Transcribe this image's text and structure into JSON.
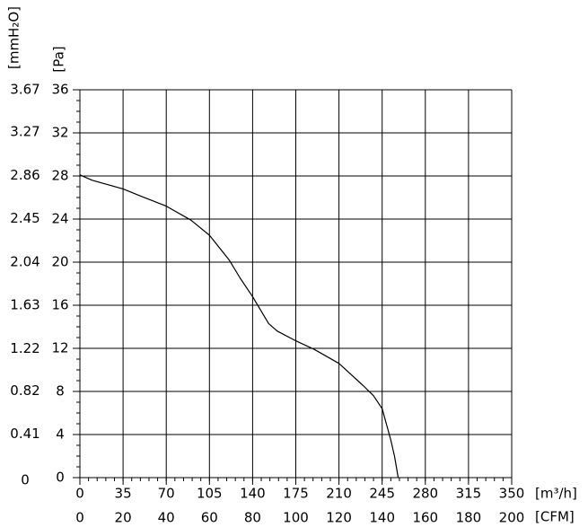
{
  "chart_data": {
    "type": "line",
    "x": [
      0,
      10,
      35,
      50,
      70,
      90,
      105,
      121,
      130,
      140,
      153,
      160,
      175,
      190,
      210,
      230,
      238,
      245,
      252,
      255,
      258
    ],
    "series": [
      {
        "color": "#000000",
        "values": [
          28.1,
          27.6,
          26.8,
          26.1,
          25.2,
          23.9,
          22.5,
          20.2,
          18.5,
          16.8,
          14.3,
          13.6,
          12.7,
          11.9,
          10.6,
          8.5,
          7.6,
          6.4,
          3.5,
          2,
          0
        ]
      }
    ],
    "xlim": [
      0,
      350
    ],
    "xticks": [
      0,
      35,
      70,
      105,
      140,
      175,
      210,
      245,
      280,
      315,
      350
    ],
    "x2lim": [
      0,
      200
    ],
    "x2ticks": [
      0,
      20,
      40,
      60,
      80,
      100,
      120,
      140,
      160,
      180,
      200
    ],
    "ylim": [
      0,
      36
    ],
    "yticks": [
      0,
      4,
      8,
      12,
      16,
      20,
      24,
      28,
      32,
      36
    ],
    "y2lim": [
      0,
      3.67
    ],
    "y2ticks": [
      0,
      0.41,
      0.82,
      1.22,
      1.63,
      2.04,
      2.45,
      2.86,
      3.27,
      3.67
    ],
    "xlabel": "[m³/h]",
    "x2label": "[CFM]",
    "ylabel": "[Pa]",
    "y2label": "[mmH₂O]",
    "grid": true
  }
}
